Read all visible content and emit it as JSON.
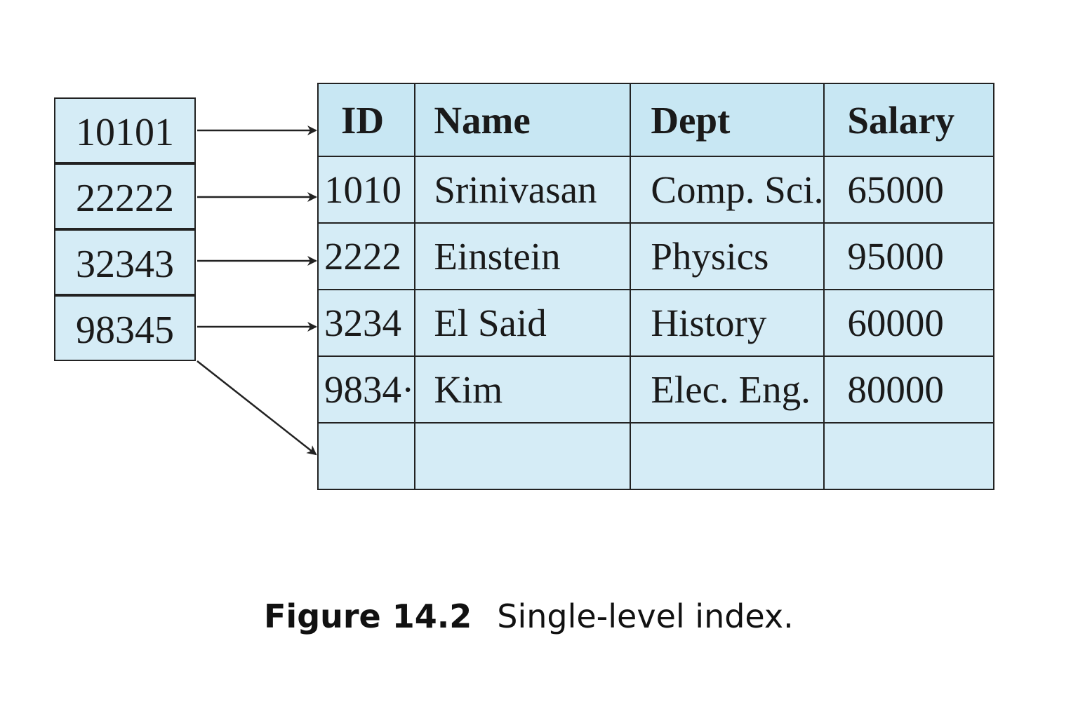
{
  "index": {
    "keys": [
      "10101",
      "22222",
      "32343",
      "98345"
    ]
  },
  "table": {
    "headers": {
      "id": "ID",
      "name": "Name",
      "dept": "Dept",
      "salary": "Salary"
    },
    "rows": [
      {
        "id": "1010",
        "name": "Srinivasan",
        "dept": "Comp. Sci.",
        "salary": "65000"
      },
      {
        "id": "2222",
        "name": "Einstein",
        "dept": "Physics",
        "salary": "95000"
      },
      {
        "id": "3234",
        "name": "El Said",
        "dept": "History",
        "salary": "60000"
      },
      {
        "id": "9834·",
        "name": "Kim",
        "dept": "Elec. Eng.",
        "salary": "80000"
      },
      {
        "id": "",
        "name": "",
        "dept": "",
        "salary": ""
      }
    ]
  },
  "caption": {
    "figure_number": "Figure 14.2",
    "text": "Single-level index."
  },
  "colors": {
    "cell_fill": "#d5ecf6",
    "header_fill": "#c8e7f3",
    "border": "#222222"
  }
}
